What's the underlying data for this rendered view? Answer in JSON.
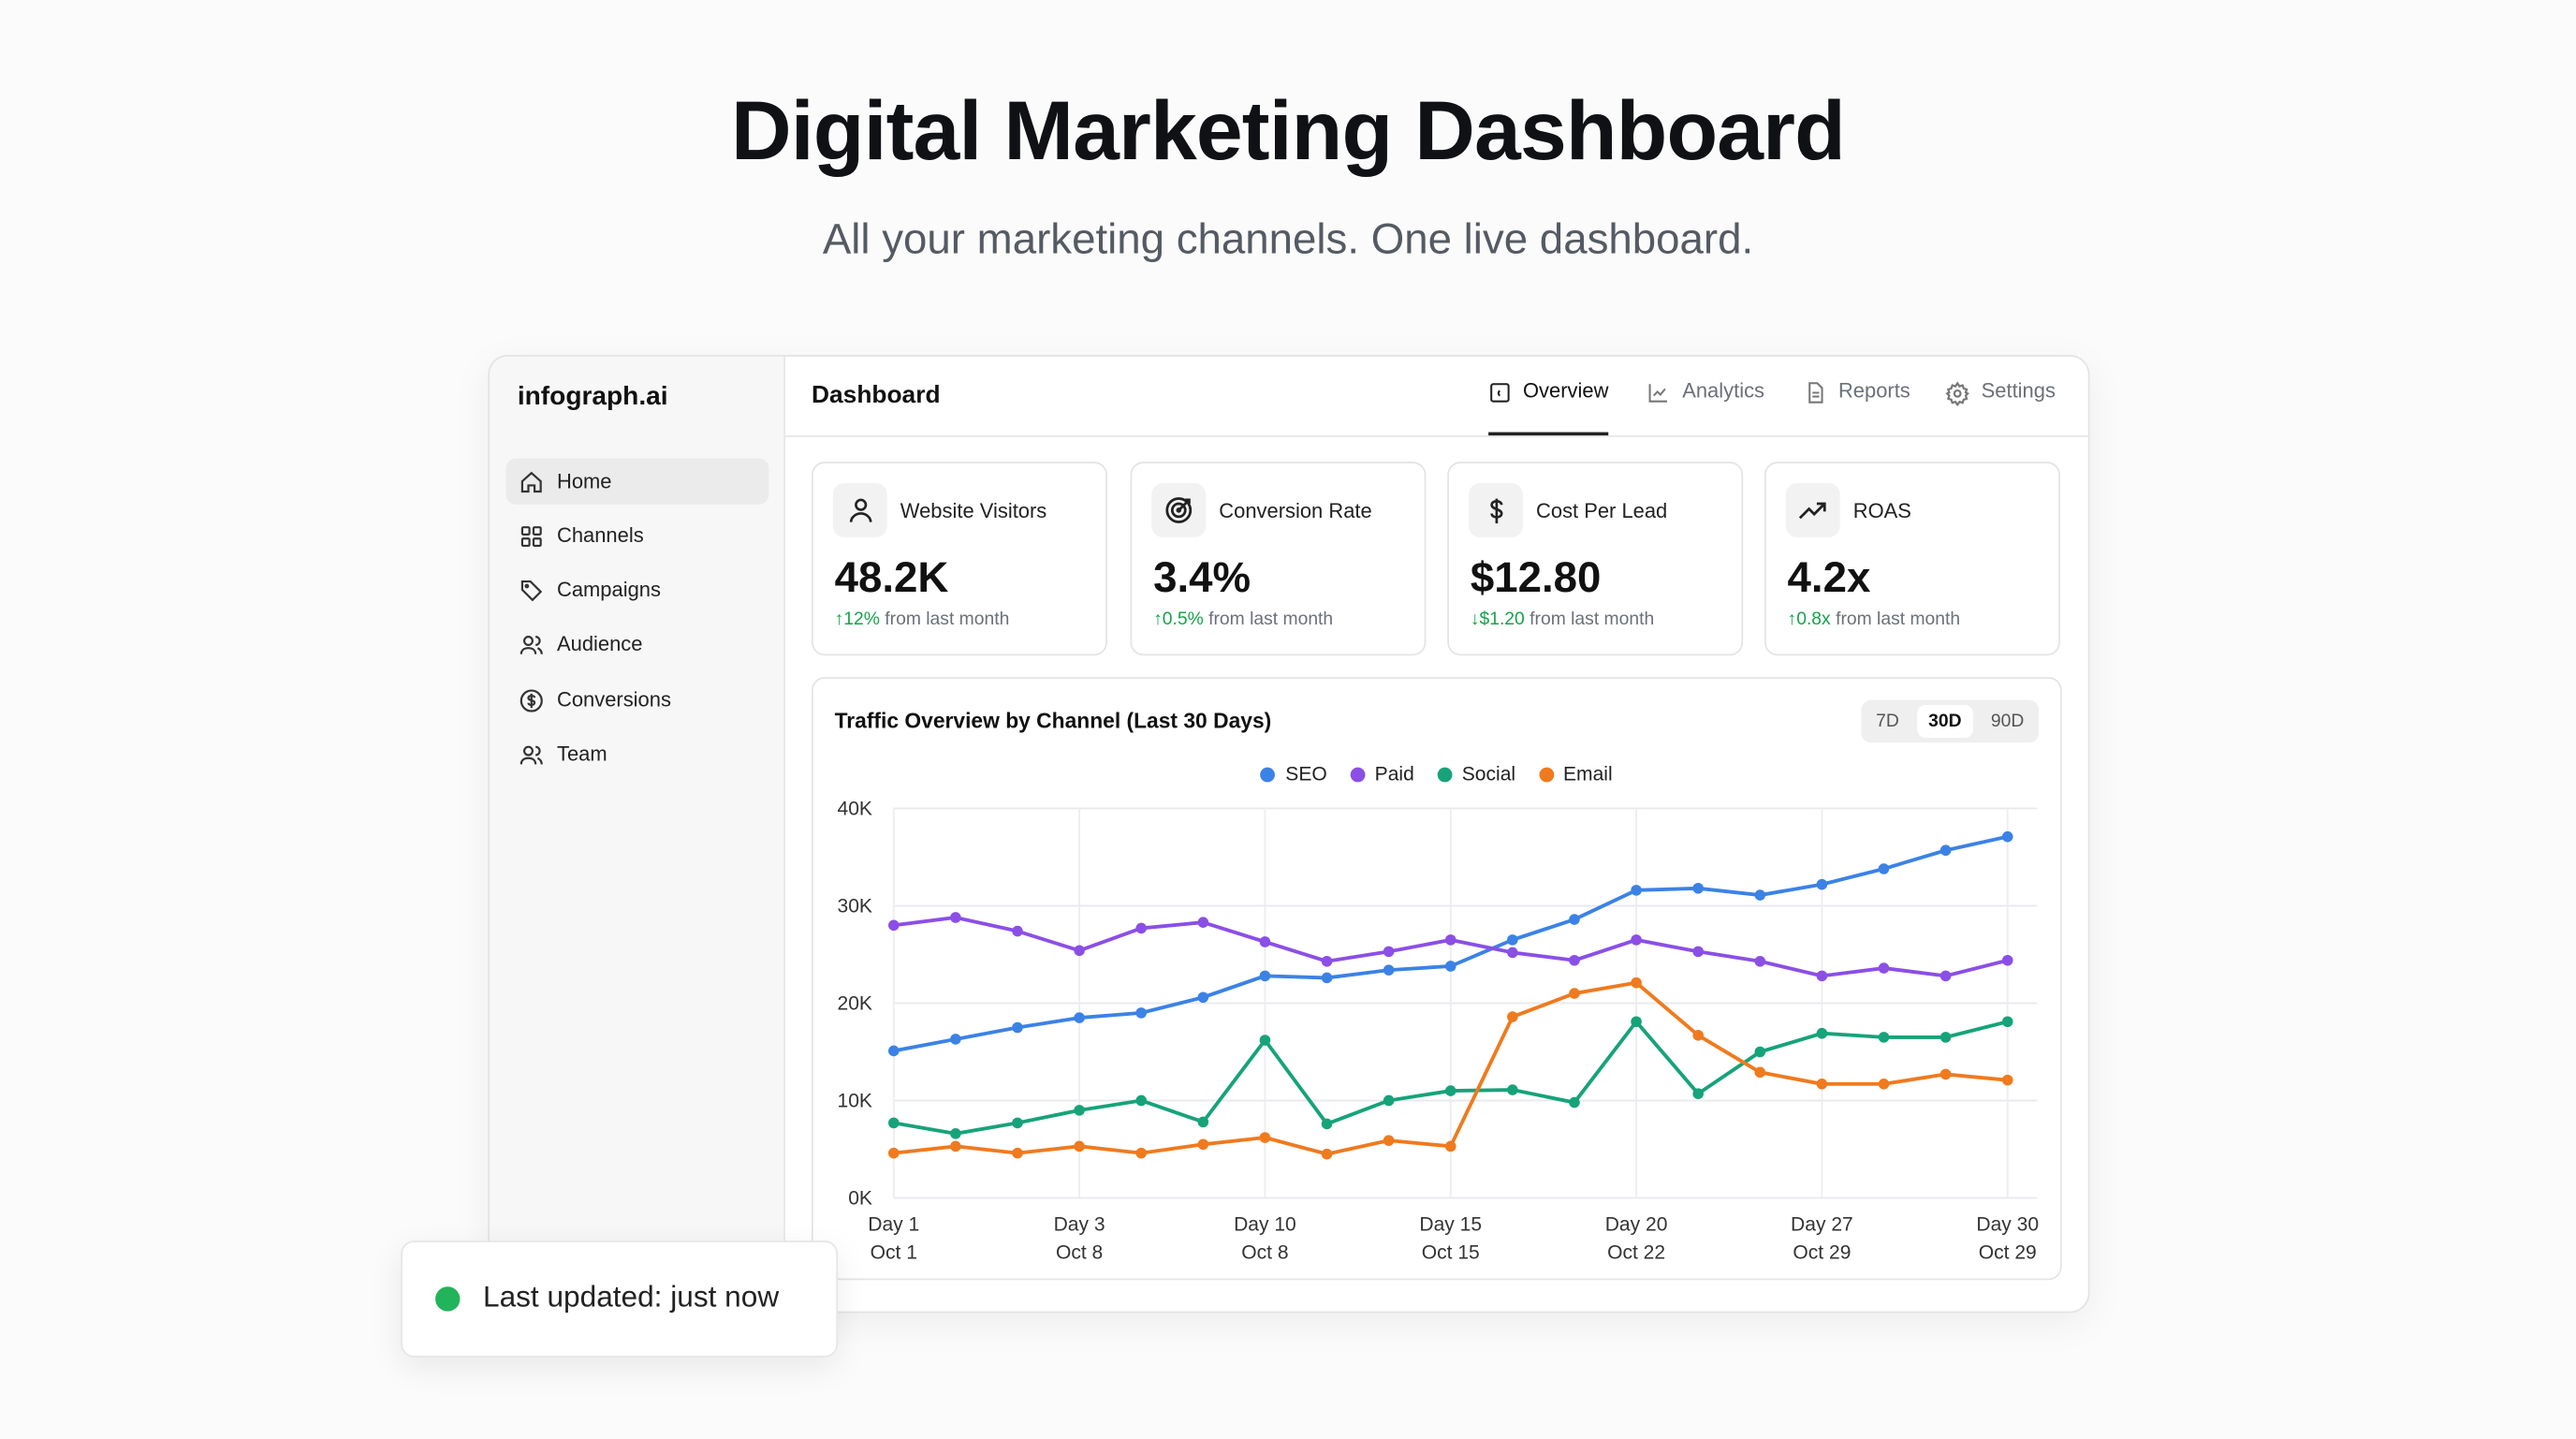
{
  "hero": {
    "title": "Digital Marketing Dashboard",
    "subtitle": "All your marketing channels. One live dashboard."
  },
  "sidebar": {
    "logo": "infograph.ai",
    "items": [
      {
        "label": "Home",
        "icon": "home-icon",
        "active": true
      },
      {
        "label": "Channels",
        "icon": "grid-icon"
      },
      {
        "label": "Campaigns",
        "icon": "tag-icon"
      },
      {
        "label": "Audience",
        "icon": "users-icon"
      },
      {
        "label": "Conversions",
        "icon": "dollar-circle-icon"
      },
      {
        "label": "Team",
        "icon": "users-icon"
      }
    ]
  },
  "header": {
    "title": "Dashboard",
    "tabs": [
      {
        "label": "Overview",
        "icon": "overview-icon",
        "active": true
      },
      {
        "label": "Analytics",
        "icon": "line-chart-icon"
      },
      {
        "label": "Reports",
        "icon": "document-icon"
      },
      {
        "label": "Settings",
        "icon": "gear-icon"
      }
    ]
  },
  "kpis": [
    {
      "label": "Website Visitors",
      "icon": "user-icon",
      "value": "48.2K",
      "arrow": "↑",
      "delta": "12%",
      "suffix": "from last month"
    },
    {
      "label": "Conversion Rate",
      "icon": "target-icon",
      "value": "3.4%",
      "arrow": "↑",
      "delta": "0.5%",
      "suffix": "from last month"
    },
    {
      "label": "Cost Per Lead",
      "icon": "dollar-icon",
      "value": "$12.80",
      "arrow": "↓",
      "delta": "$1.20",
      "suffix": "from last month"
    },
    {
      "label": "ROAS",
      "icon": "trending-up-icon",
      "value": "4.2x",
      "arrow": "↑",
      "delta": "0.8x",
      "suffix": "from last month"
    }
  ],
  "colors": {
    "positive": "#16a34a",
    "SEO": "#3b82e6",
    "Paid": "#8b4fe6",
    "Social": "#16a37a",
    "Email": "#f07a1e",
    "status": "#22b45a"
  },
  "range": {
    "options": [
      "7D",
      "30D",
      "90D"
    ],
    "selected": "30D"
  },
  "chart_data": {
    "type": "line",
    "title": "Traffic Overview by Channel (Last 30 Days)",
    "ylim": [
      0,
      40000
    ],
    "yticks": [
      "0K",
      "10K",
      "20K",
      "30K",
      "40K"
    ],
    "ytick_values": [
      0,
      10000,
      20000,
      30000,
      40000
    ],
    "xtick_labels": [
      {
        "index": 0,
        "day": "Day 1",
        "date": "Oct 1"
      },
      {
        "index": 3,
        "day": "Day 3",
        "date": "Oct 8"
      },
      {
        "index": 6,
        "day": "Day 10",
        "date": "Oct 8"
      },
      {
        "index": 9,
        "day": "Day 15",
        "date": "Oct 15"
      },
      {
        "index": 12,
        "day": "Day 20",
        "date": "Oct 22"
      },
      {
        "index": 15,
        "day": "Day 27",
        "date": "Oct 29"
      },
      {
        "index": 18,
        "day": "Day 30",
        "date": "Oct 29"
      }
    ],
    "grid": true,
    "legend": "top-center",
    "series": [
      {
        "name": "SEO",
        "values": [
          15100,
          16300,
          17500,
          18500,
          19000,
          20600,
          22800,
          22600,
          23400,
          23800,
          26500,
          28600,
          31600,
          31800,
          31100,
          32200,
          33800,
          35700,
          37100
        ]
      },
      {
        "name": "Paid",
        "values": [
          28000,
          28800,
          27400,
          25400,
          27700,
          28300,
          26300,
          24300,
          25300,
          26500,
          25200,
          24400,
          26500,
          25300,
          24300,
          22800,
          23600,
          22800,
          24400
        ]
      },
      {
        "name": "Social",
        "values": [
          7700,
          6600,
          7700,
          9000,
          10000,
          7800,
          16200,
          7600,
          10000,
          11000,
          11100,
          9800,
          18100,
          10700,
          15000,
          16900,
          16500,
          16500,
          18100
        ]
      },
      {
        "name": "Email",
        "values": [
          4600,
          5300,
          4600,
          5300,
          4600,
          5500,
          6200,
          4500,
          5900,
          5300,
          18600,
          21000,
          22100,
          16700,
          12900,
          11700,
          11700,
          12700,
          12100
        ]
      }
    ]
  },
  "toast": {
    "text": "Last updated: just now"
  }
}
